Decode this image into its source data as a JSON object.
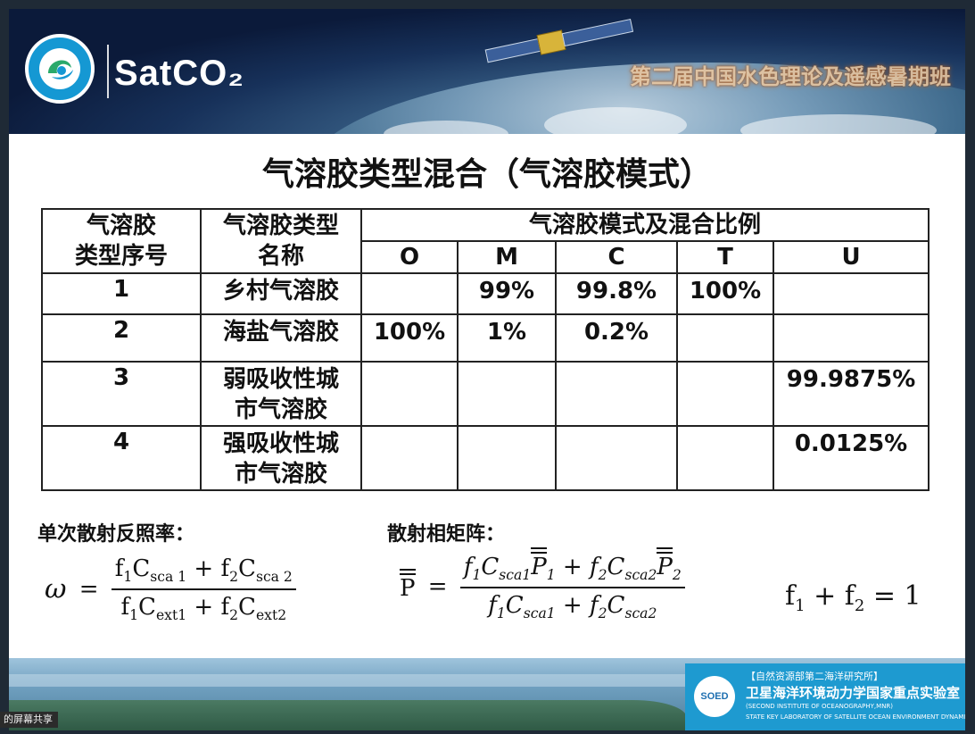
{
  "header": {
    "logo_text": "SatCO₂",
    "banner_title": "第二届中国水色理论及遥感暑期班"
  },
  "slide_title": "气溶胶类型混合（气溶胶模式）",
  "table": {
    "col1_header_line1": "气溶胶",
    "col1_header_line2": "类型序号",
    "col2_header_line1": "气溶胶类型",
    "col2_header_line2": "名称",
    "group_header": "气溶胶模式及混合比例",
    "modes": [
      "O",
      "M",
      "C",
      "T",
      "U"
    ],
    "rows": [
      {
        "index": "1",
        "name_line1": "乡村气溶胶",
        "name_line2": "",
        "O": "",
        "M": "99%",
        "C": "99.8%",
        "T": "100%",
        "U": ""
      },
      {
        "index": "2",
        "name_line1": "海盐气溶胶",
        "name_line2": "",
        "O": "100%",
        "M": "1%",
        "C": "0.2%",
        "T": "",
        "U": ""
      },
      {
        "index": "3",
        "name_line1": "弱吸收性城",
        "name_line2": "市气溶胶",
        "O": "",
        "M": "",
        "C": "",
        "T": "",
        "U": "99.9875%"
      },
      {
        "index": "4",
        "name_line1": "强吸收性城",
        "name_line2": "市气溶胶",
        "O": "",
        "M": "",
        "C": "",
        "T": "",
        "U": "0.0125%"
      }
    ]
  },
  "formulas": {
    "albedo_label": "单次散射反照率：",
    "matrix_label": "散射相矩阵："
  },
  "footer": {
    "lab_logo": "SOED",
    "institute": "【自然资源部第二海洋研究所】",
    "lab_name": "卫星海洋环境动力学国家重点实验室",
    "institute_en": "(SECOND INSTITUTE OF OCEANOGRAPHY,MNR)",
    "lab_name_en": "STATE KEY LABORATORY OF SATELLITE OCEAN ENVIRONMENT DYNAMICS"
  },
  "screen_share_label": "的屏幕共享"
}
